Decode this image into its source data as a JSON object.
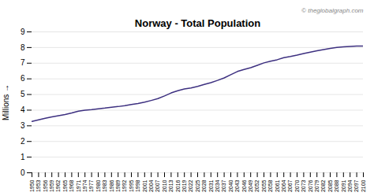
{
  "chart_data": {
    "type": "line",
    "title": "Norway - Total Population",
    "ylabel": "Millions",
    "annotation": "© theglobalgraph.com",
    "color": "#3d3080",
    "x": [
      1950,
      1953,
      1956,
      1959,
      1962,
      1965,
      1968,
      1971,
      1974,
      1977,
      1980,
      1983,
      1986,
      1989,
      1992,
      1995,
      1998,
      2001,
      2004,
      2007,
      2010,
      2013,
      2016,
      2019,
      2022,
      2025,
      2028,
      2031,
      2034,
      2037,
      2040,
      2043,
      2046,
      2049,
      2052,
      2055,
      2058,
      2061,
      2064,
      2067,
      2070,
      2073,
      2076,
      2079,
      2082,
      2085,
      2088,
      2091,
      2094,
      2097,
      2100
    ],
    "values": [
      3.28,
      3.38,
      3.48,
      3.57,
      3.65,
      3.72,
      3.82,
      3.93,
      4.0,
      4.04,
      4.09,
      4.13,
      4.19,
      4.23,
      4.29,
      4.36,
      4.43,
      4.51,
      4.62,
      4.74,
      4.91,
      5.1,
      5.24,
      5.35,
      5.42,
      5.52,
      5.64,
      5.76,
      5.9,
      6.06,
      6.27,
      6.47,
      6.6,
      6.71,
      6.86,
      7.02,
      7.13,
      7.22,
      7.35,
      7.43,
      7.52,
      7.62,
      7.71,
      7.79,
      7.87,
      7.94,
      8.01,
      8.04,
      8.07,
      8.09,
      8.1
    ],
    "xlim": [
      1950,
      2100
    ],
    "xticks": [
      1950,
      1953,
      1956,
      1959,
      1962,
      1965,
      1968,
      1971,
      1974,
      1977,
      1980,
      1983,
      1986,
      1989,
      1992,
      1995,
      1998,
      2001,
      2004,
      2007,
      2010,
      2013,
      2016,
      2019,
      2022,
      2025,
      2028,
      2031,
      2034,
      2037,
      2040,
      2043,
      2046,
      2049,
      2052,
      2055,
      2058,
      2061,
      2064,
      2067,
      2070,
      2073,
      2076,
      2079,
      2082,
      2085,
      2088,
      2091,
      2094,
      2097,
      2100
    ],
    "ylim": [
      0,
      9
    ],
    "yticks": [
      0,
      1,
      2,
      3,
      4,
      5,
      6,
      7,
      8,
      9
    ],
    "grid": true
  }
}
